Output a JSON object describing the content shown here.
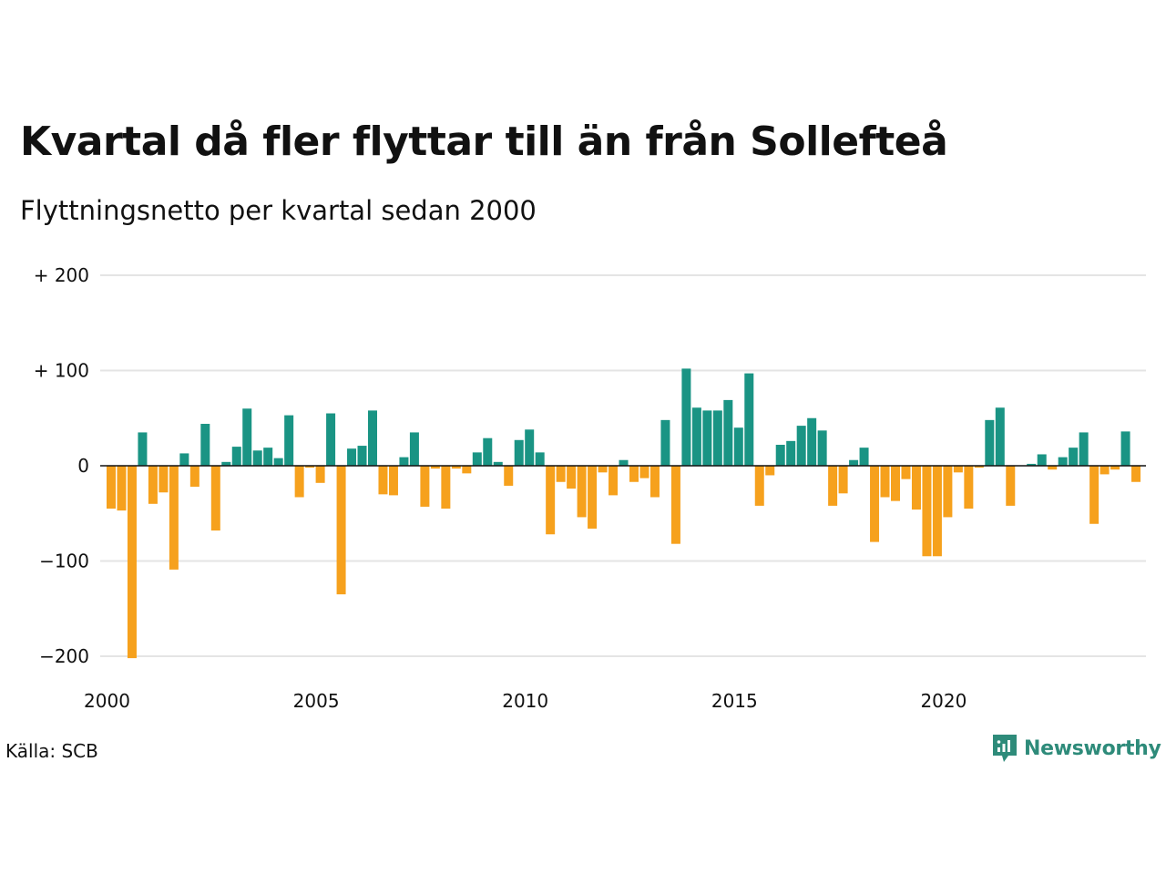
{
  "title": "Kvartal då fler flyttar till än från Sollefteå",
  "subtitle": "Flyttningsnetto per kvartal sedan 2000",
  "source": "Källa: SCB",
  "brand": {
    "name": "Newsworthy",
    "icon": "newsworthy-logo-icon",
    "color": "#2e8b7a"
  },
  "colors": {
    "positive": "#1a9484",
    "negative": "#f6a11d",
    "grid": "#e4e4e4",
    "zero_line": "#111111"
  },
  "chart_data": {
    "type": "bar",
    "start_year": 2000,
    "periods_per_year": 4,
    "ylim": [
      -200,
      200
    ],
    "yticks": [
      200,
      100,
      0,
      -100,
      -200
    ],
    "ytick_labels": [
      "+ 200",
      "+ 100",
      "0",
      "−100",
      "−200"
    ],
    "xticks": [
      "2000",
      "2005",
      "2010",
      "2015",
      "2020"
    ],
    "grid": true,
    "legend": "none",
    "values": [
      -45,
      -47,
      -202,
      35,
      -40,
      -28,
      -109,
      13,
      -22,
      44,
      -68,
      4,
      20,
      60,
      16,
      19,
      8,
      53,
      -33,
      -2,
      -18,
      55,
      -135,
      18,
      21,
      58,
      -30,
      -31,
      9,
      35,
      -43,
      -3,
      -45,
      -3,
      -8,
      14,
      29,
      4,
      -21,
      27,
      38,
      14,
      -72,
      -17,
      -24,
      -54,
      -66,
      -7,
      -31,
      6,
      -17,
      -13,
      -33,
      48,
      -82,
      102,
      61,
      58,
      58,
      69,
      40,
      97,
      -42,
      -10,
      22,
      26,
      42,
      50,
      37,
      -42,
      -29,
      6,
      19,
      -80,
      -33,
      -37,
      -14,
      -46,
      -95,
      -95,
      -54,
      -7,
      -45,
      -2,
      48,
      61,
      -42,
      0,
      2,
      12,
      -4,
      9,
      19,
      35,
      -61,
      -9,
      -4,
      36,
      -17
    ]
  }
}
